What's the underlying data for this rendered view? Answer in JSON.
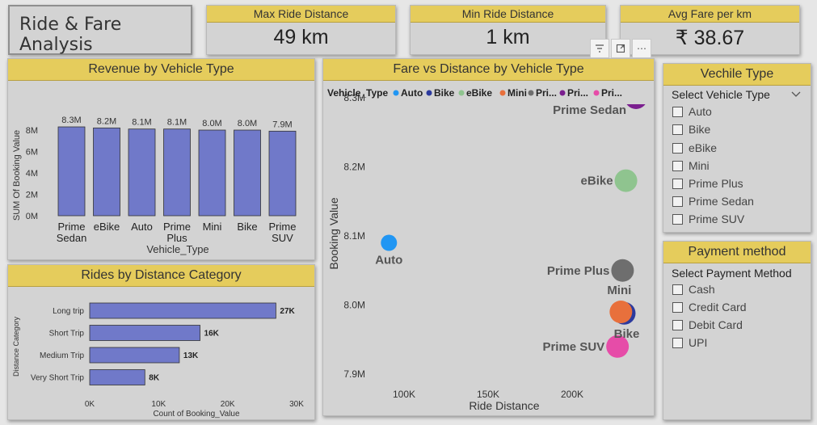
{
  "title": "Ride & Fare Analysis",
  "kpis": [
    {
      "label": "Max Ride Distance",
      "value": "49 km"
    },
    {
      "label": "Min Ride Distance",
      "value": "1 km"
    },
    {
      "label": "Avg Fare per km",
      "value": "₹ 38.67"
    }
  ],
  "visual_icons": [
    "filter-icon",
    "focus-mode-icon",
    "more-options-icon"
  ],
  "vehicle_slicer": {
    "title": "Vechile Type",
    "label": "Select Vehicle Type",
    "options": [
      "Auto",
      "Bike",
      "eBike",
      "Mini",
      "Prime Plus",
      "Prime Sedan",
      "Prime SUV"
    ]
  },
  "payment_slicer": {
    "title": "Payment method",
    "label": "Select Payment Method",
    "options": [
      "Cash",
      "Credit Card",
      "Debit Card",
      "UPI"
    ]
  },
  "chart_data": [
    {
      "type": "bar",
      "title": "Revenue by Vehicle Type",
      "xlabel": "Vehicle_Type",
      "ylabel": "SUM Of Booking Value",
      "categories": [
        "Prime Sedan",
        "eBike",
        "Auto",
        "Prime Plus",
        "Mini",
        "Bike",
        "Prime SUV"
      ],
      "values": [
        8.3,
        8.2,
        8.1,
        8.1,
        8.0,
        8.0,
        7.9
      ],
      "data_labels": [
        "8.3M",
        "8.2M",
        "8.1M",
        "8.1M",
        "8.0M",
        "8.0M",
        "7.9M"
      ],
      "yticks": [
        "0M",
        "2M",
        "4M",
        "6M",
        "8M"
      ],
      "ylim": [
        0,
        8
      ],
      "unit": "M",
      "color": "#7079c9"
    },
    {
      "type": "bar",
      "orientation": "horizontal",
      "title": "Rides by Distance Category",
      "xlabel": "Count of Booking_Value",
      "ylabel": "Distance Category",
      "categories": [
        "Long trip",
        "Short Trip",
        "Medium Trip",
        "Very Short Trip"
      ],
      "values": [
        27000,
        16000,
        13000,
        8000
      ],
      "data_labels": [
        "27K",
        "16K",
        "13K",
        "8K"
      ],
      "xticks": [
        "0K",
        "10K",
        "20K",
        "30K"
      ],
      "xlim": [
        0,
        30000
      ],
      "color": "#7079c9"
    },
    {
      "type": "scatter",
      "title": "Fare vs Distance by Vehicle Type",
      "xlabel": "Ride Distance",
      "ylabel": "Booking Value",
      "legend_title": "Vehicle_Type",
      "legend_items": [
        "Auto",
        "Bike",
        "eBike",
        "Mini",
        "Pri...",
        "Pri...",
        "Pri..."
      ],
      "xticks": [
        {
          "v": 100000,
          "label": "100K"
        },
        {
          "v": 150000,
          "label": "150K"
        },
        {
          "v": 200000,
          "label": "200K"
        }
      ],
      "yticks": [
        {
          "v": 7.9,
          "label": "7.9M"
        },
        {
          "v": 8.0,
          "label": "8.0M"
        },
        {
          "v": 8.1,
          "label": "8.1M"
        },
        {
          "v": 8.2,
          "label": "8.2M"
        },
        {
          "v": 8.3,
          "label": "8.3M"
        }
      ],
      "xlim": [
        80000,
        250000
      ],
      "ylim": [
        7.9,
        8.3
      ],
      "points": [
        {
          "name": "Auto",
          "x": 91000,
          "y": 8.09,
          "color": "#2196f3"
        },
        {
          "name": "Bike",
          "x": 231000,
          "y": 7.988,
          "color": "#2c3a9e"
        },
        {
          "name": "eBike",
          "x": 232000,
          "y": 8.18,
          "color": "#8fc48f"
        },
        {
          "name": "Mini",
          "x": 229000,
          "y": 7.99,
          "color": "#e8703c"
        },
        {
          "name": "Prime Plus",
          "x": 230000,
          "y": 8.05,
          "color": "#6e6e6e"
        },
        {
          "name": "Prime Sedan",
          "x": 238000,
          "y": 8.3,
          "color": "#7b1f8f"
        },
        {
          "name": "Prime SUV",
          "x": 227000,
          "y": 7.94,
          "color": "#e64ca8"
        }
      ]
    }
  ]
}
